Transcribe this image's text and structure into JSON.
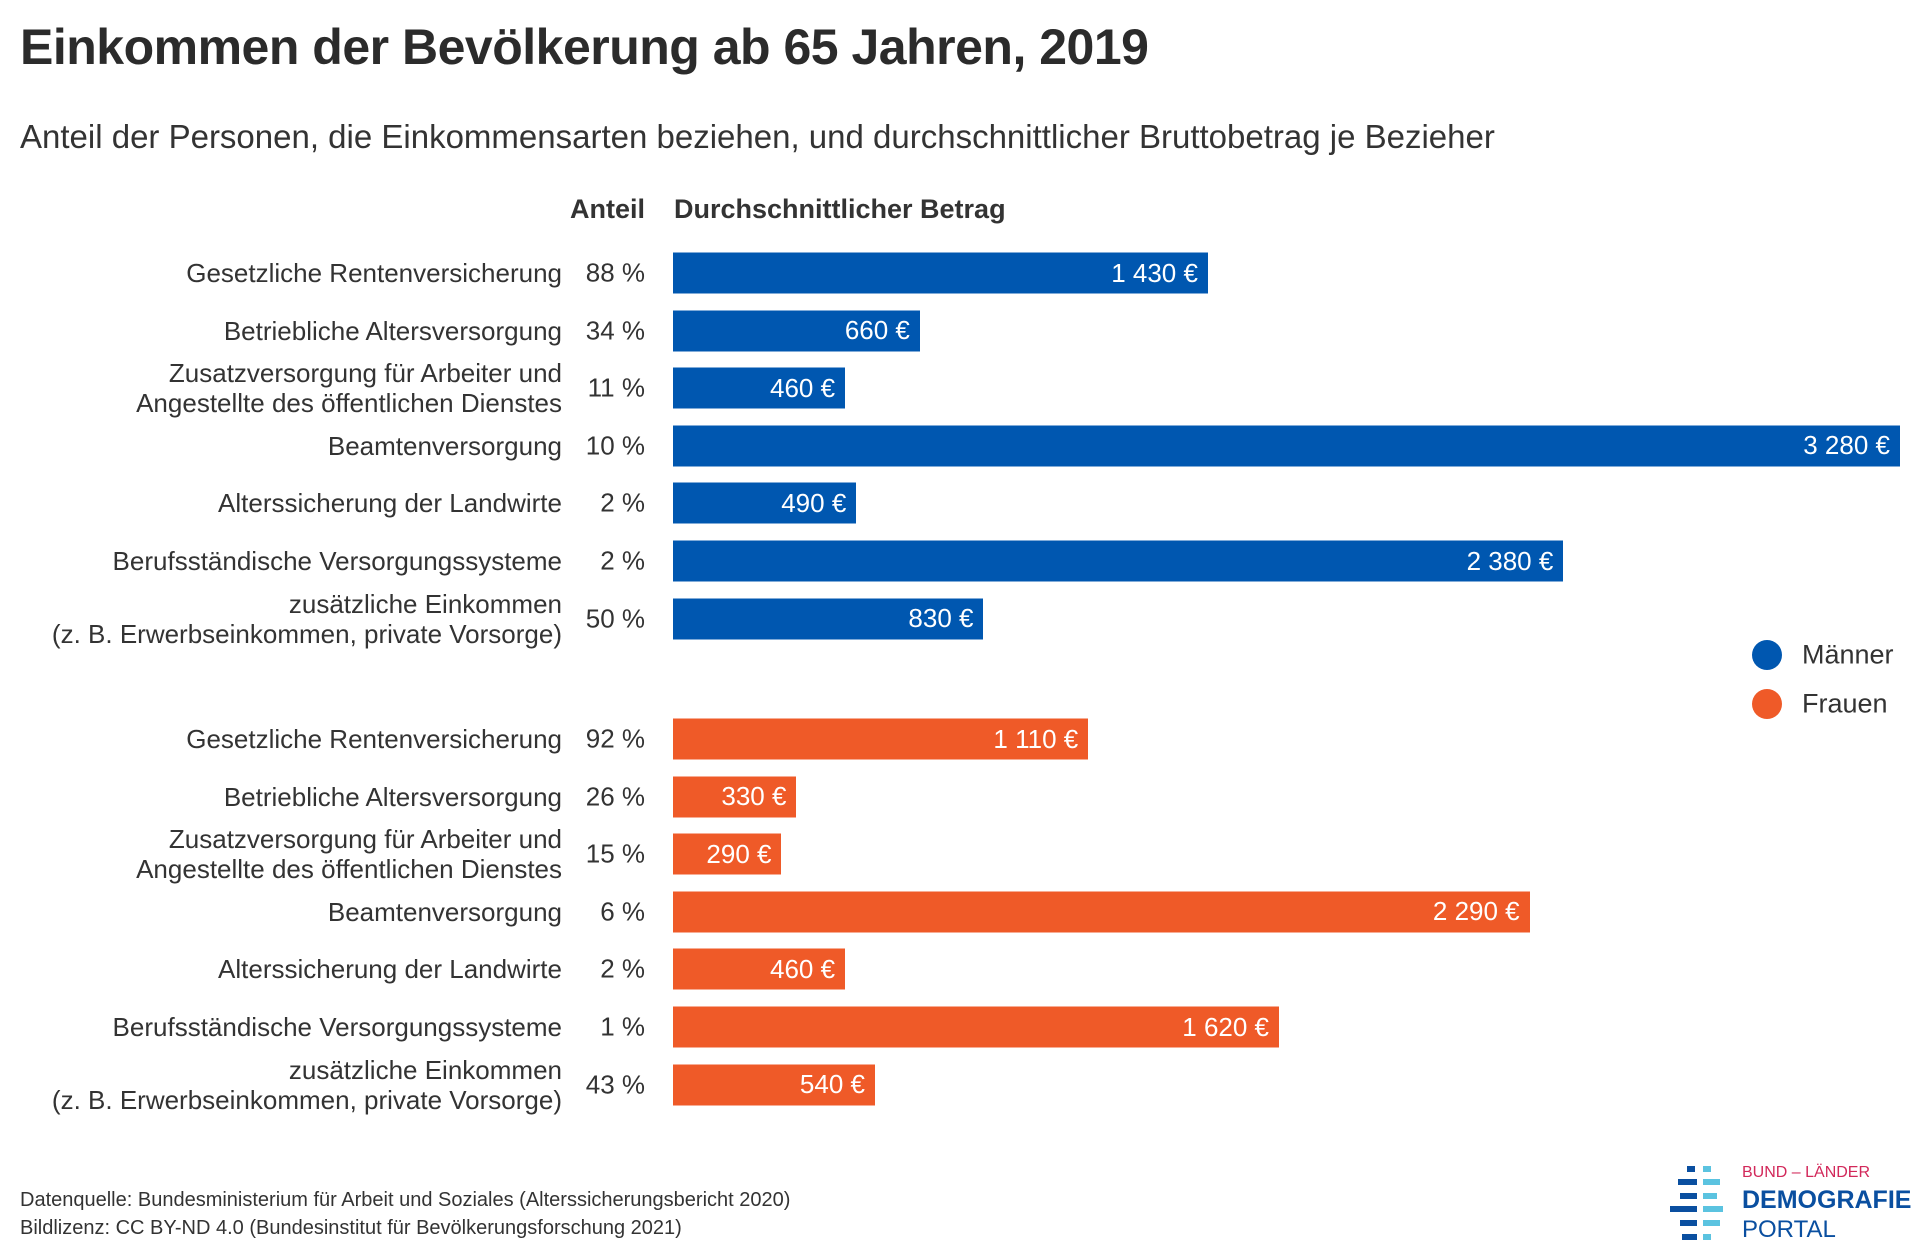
{
  "chart_data": {
    "type": "bar",
    "title": "Einkommen der Bevölkerung ab 65 Jahren, 2019",
    "subtitle": "Anteil der Personen, die Einkommensarten beziehen, und durchschnittlicher Bruttobetrag je Bezieher",
    "column_headers": {
      "share": "Anteil",
      "amount": "Durchschnittlicher Betrag"
    },
    "categories": [
      "Gesetzliche Rentenversicherung",
      "Betriebliche Altersversorgung",
      "Zusatzversorgung für Arbeiter und\nAngestellte des öffentlichen Dienstes",
      "Beamtenversorgung",
      "Alterssicherung der Landwirte",
      "Berufsständische Versorgungssysteme",
      "zusätzliche Einkommen\n(z. B. Erwerbseinkommen, private Vorsorge)"
    ],
    "unit": "€",
    "series": [
      {
        "name": "Männer",
        "color": "#0057b0",
        "values": [
          1430,
          660,
          460,
          3280,
          490,
          2380,
          830
        ],
        "value_labels": [
          "1 430 €",
          "660 €",
          "460 €",
          "3 280 €",
          "490 €",
          "2 380 €",
          "830 €"
        ],
        "shares": [
          "88 %",
          "34 %",
          "11 %",
          "10 %",
          "2 %",
          "2 %",
          "50 %"
        ]
      },
      {
        "name": "Frauen",
        "color": "#ef5a28",
        "values": [
          1110,
          330,
          290,
          2290,
          460,
          1620,
          540
        ],
        "value_labels": [
          "1 110 €",
          "330 €",
          "290 €",
          "2 290 €",
          "460 €",
          "1 620 €",
          "540 €"
        ],
        "shares": [
          "92 %",
          "26 %",
          "15 %",
          "6 %",
          "2 %",
          "1 %",
          "43 %"
        ]
      }
    ],
    "legend_position": "right",
    "grid": false,
    "xlim": [
      0,
      3280
    ]
  },
  "footer": {
    "source": "Datenquelle: Bundesministerium für Arbeit und Soziales (Alterssicherungsbericht 2020)",
    "license": "Bildlizenz: CC BY-ND 4.0 (Bundesinstitut für Bevölkerungsforschung 2021)"
  },
  "logo": {
    "line1": "BUND – LÄNDER",
    "line2": "DEMOGRAFIE",
    "line3": "PORTAL"
  }
}
